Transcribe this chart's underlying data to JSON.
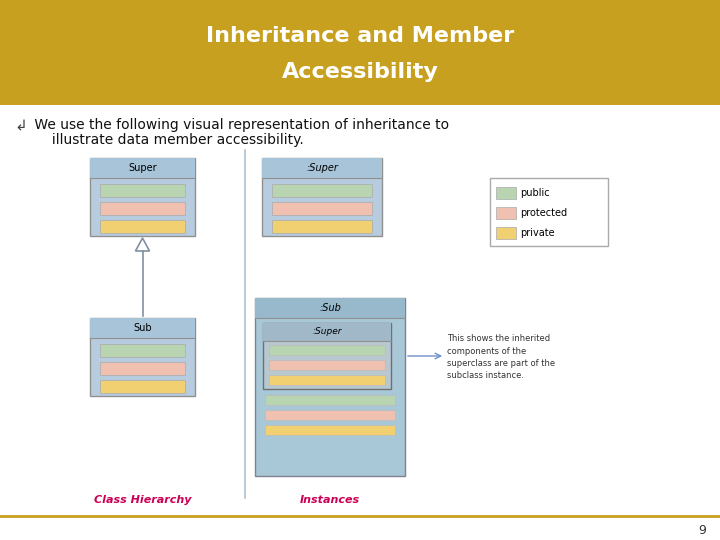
{
  "title_line1": "Inheritance and Member",
  "title_line2": "Accessibility",
  "title_bg": "#C8A020",
  "title_text_color": "#FFFFFF",
  "body_bg": "#FFFFFF",
  "bullet_text_line1": " We use the following visual representation of inheritance to",
  "bullet_text_line2": "     illustrate data member accessibility.",
  "color_public": "#B8D4B0",
  "color_protected": "#F0C0B0",
  "color_private": "#F0D070",
  "color_box_border": "#909090",
  "color_class_bg": "#B8CCE0",
  "color_class_header": "#A8C4D8",
  "color_inst_outer_bg": "#A8C8D8",
  "color_inst_outer_header": "#98B8CC",
  "color_nested_bg": "#B8C8D0",
  "color_nested_header": "#A0B8C8",
  "color_divider": "#A0B8CC",
  "label_class_hierarchy": "Class Hierarchy",
  "label_instances": "Instances",
  "label_color": "#CC0055",
  "page_number": "9",
  "annotation_text": "This shows the inherited\ncomponents of the\nsuperclass are part of the\nsubclass instance.",
  "arrow_color": "#7090CC",
  "divider_color": "#C8A020",
  "legend_border": "#AAAAAA",
  "inherit_arrow_color": "#8090A0"
}
